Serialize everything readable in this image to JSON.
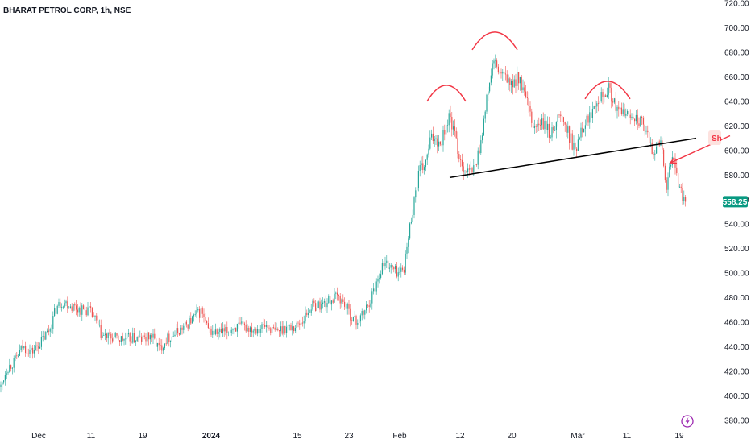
{
  "chart_data": {
    "type": "candlestick",
    "title": "BHARAT PETROL CORP, 1h, NSE",
    "ylim": [
      380,
      720
    ],
    "y_ticks": [
      "720.00",
      "700.00",
      "680.00",
      "660.00",
      "640.00",
      "620.00",
      "600.00",
      "580.00",
      "560.00",
      "540.00",
      "520.00",
      "500.00",
      "480.00",
      "460.00",
      "440.00",
      "420.00",
      "400.00",
      "380.00"
    ],
    "x_ticks": [
      {
        "label": "Dec",
        "bold": false
      },
      {
        "label": "11",
        "bold": false
      },
      {
        "label": "19",
        "bold": false
      },
      {
        "label": "2024",
        "bold": true
      },
      {
        "label": "15",
        "bold": false
      },
      {
        "label": "23",
        "bold": false
      },
      {
        "label": "Feb",
        "bold": false
      },
      {
        "label": "12",
        "bold": false
      },
      {
        "label": "20",
        "bold": false
      },
      {
        "label": "Mar",
        "bold": false
      },
      {
        "label": "11",
        "bold": false
      },
      {
        "label": "19",
        "bold": false
      }
    ],
    "last_price": "558.25",
    "colors": {
      "up": "#26a69a",
      "down": "#ef5350",
      "annotation": "#f23645",
      "neckline": "#000000",
      "price_tag": "#089981"
    },
    "price_path": [
      [
        0,
        405
      ],
      [
        8,
        422
      ],
      [
        18,
        428
      ],
      [
        28,
        440
      ],
      [
        40,
        436
      ],
      [
        52,
        445
      ],
      [
        62,
        455
      ],
      [
        70,
        472
      ],
      [
        78,
        477
      ],
      [
        90,
        473
      ],
      [
        102,
        470
      ],
      [
        110,
        470
      ],
      [
        118,
        462
      ],
      [
        126,
        449
      ],
      [
        140,
        447
      ],
      [
        152,
        446
      ],
      [
        164,
        447
      ],
      [
        176,
        446
      ],
      [
        188,
        449
      ],
      [
        198,
        438
      ],
      [
        206,
        446
      ],
      [
        218,
        451
      ],
      [
        230,
        457
      ],
      [
        242,
        465
      ],
      [
        250,
        469
      ],
      [
        258,
        453
      ],
      [
        270,
        451
      ],
      [
        282,
        452
      ],
      [
        290,
        456
      ],
      [
        302,
        456
      ],
      [
        316,
        455
      ],
      [
        330,
        457
      ],
      [
        342,
        452
      ],
      [
        354,
        456
      ],
      [
        366,
        456
      ],
      [
        376,
        462
      ],
      [
        386,
        473
      ],
      [
        398,
        474
      ],
      [
        410,
        478
      ],
      [
        420,
        481
      ],
      [
        428,
        474
      ],
      [
        436,
        465
      ],
      [
        442,
        460
      ],
      [
        450,
        466
      ],
      [
        458,
        476
      ],
      [
        466,
        490
      ],
      [
        474,
        506
      ],
      [
        480,
        508
      ],
      [
        488,
        503
      ],
      [
        496,
        500
      ],
      [
        502,
        506
      ],
      [
        508,
        535
      ],
      [
        514,
        560
      ],
      [
        520,
        583
      ],
      [
        528,
        588
      ],
      [
        534,
        608
      ],
      [
        540,
        612
      ],
      [
        546,
        605
      ],
      [
        552,
        618
      ],
      [
        558,
        628
      ],
      [
        564,
        613
      ],
      [
        570,
        595
      ],
      [
        576,
        585
      ],
      [
        582,
        582
      ],
      [
        588,
        585
      ],
      [
        594,
        598
      ],
      [
        600,
        622
      ],
      [
        606,
        650
      ],
      [
        612,
        672
      ],
      [
        618,
        665
      ],
      [
        624,
        660
      ],
      [
        630,
        658
      ],
      [
        636,
        650
      ],
      [
        642,
        662
      ],
      [
        648,
        650
      ],
      [
        654,
        640
      ],
      [
        660,
        620
      ],
      [
        666,
        620
      ],
      [
        672,
        622
      ],
      [
        678,
        618
      ],
      [
        684,
        612
      ],
      [
        690,
        625
      ],
      [
        696,
        628
      ],
      [
        702,
        618
      ],
      [
        708,
        610
      ],
      [
        714,
        598
      ],
      [
        720,
        618
      ],
      [
        726,
        623
      ],
      [
        732,
        628
      ],
      [
        738,
        640
      ],
      [
        744,
        645
      ],
      [
        750,
        648
      ],
      [
        756,
        650
      ],
      [
        762,
        638
      ],
      [
        768,
        630
      ],
      [
        774,
        632
      ],
      [
        780,
        628
      ],
      [
        786,
        630
      ],
      [
        792,
        625
      ],
      [
        798,
        620
      ],
      [
        804,
        610
      ],
      [
        810,
        600
      ],
      [
        816,
        603
      ],
      [
        820,
        608
      ],
      [
        824,
        585
      ],
      [
        828,
        568
      ],
      [
        832,
        590
      ],
      [
        836,
        592
      ],
      [
        840,
        582
      ],
      [
        844,
        565
      ],
      [
        848,
        562
      ],
      [
        852,
        558.25
      ]
    ],
    "annotations": [
      {
        "type": "arc",
        "x_start": 530,
        "x_end": 578,
        "price": 640,
        "height": 20
      },
      {
        "type": "arc",
        "x_start": 586,
        "x_end": 642,
        "price": 682,
        "height": 22
      },
      {
        "type": "arc",
        "x_start": 726,
        "x_end": 782,
        "price": 642,
        "height": 22
      },
      {
        "type": "neckline",
        "x1": 558,
        "p1": 578,
        "x2": 864,
        "p2": 610
      },
      {
        "type": "arrow",
        "x1": 906,
        "p1": 612,
        "x2": 832,
        "p2": 590
      }
    ],
    "callout": {
      "text": "Sh"
    }
  },
  "icons": {
    "flash": "lightning-icon"
  }
}
